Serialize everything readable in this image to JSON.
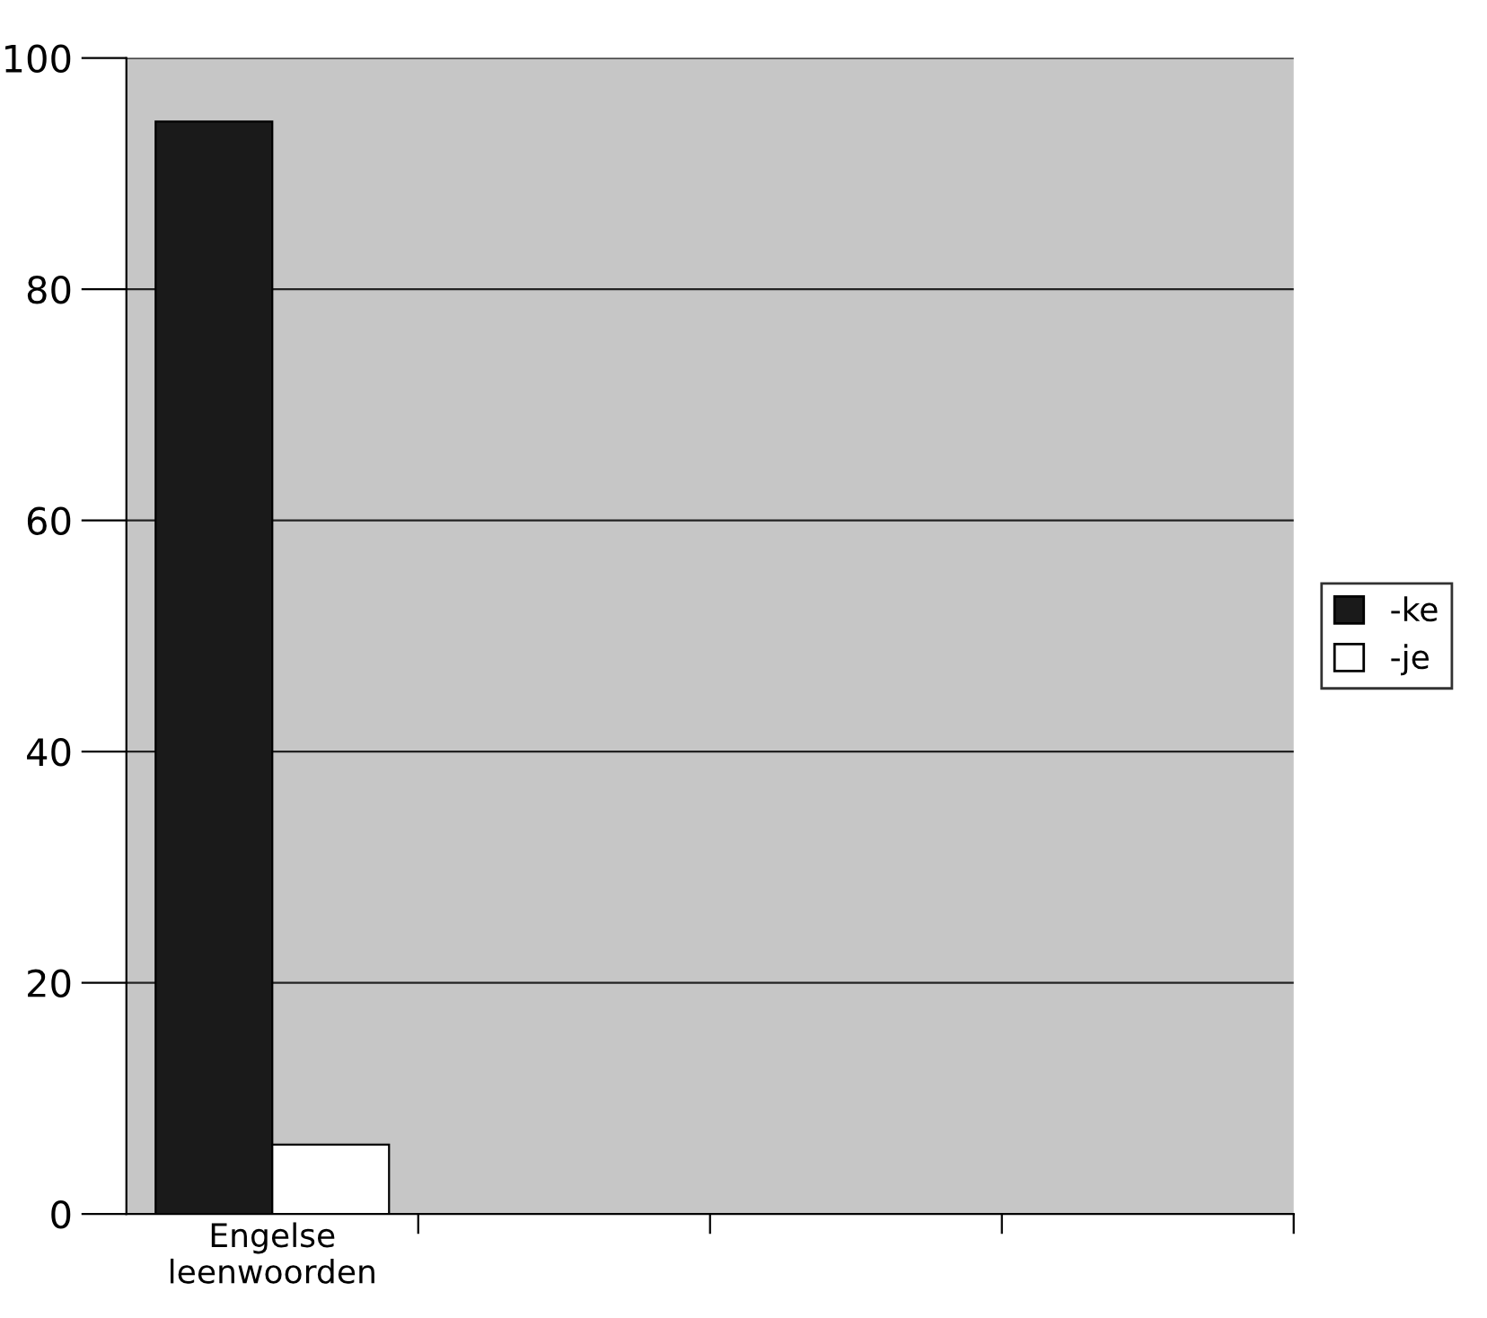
{
  "chart_data": {
    "type": "bar",
    "categories": [
      "Engelse\nleenwoorden",
      null,
      null,
      null
    ],
    "series": [
      {
        "name": "-ke",
        "color": "#1a1a1a",
        "values": [
          94.5,
          null,
          null,
          null
        ]
      },
      {
        "name": "-je",
        "color": "#ffffff",
        "values": [
          6,
          null,
          null,
          null
        ]
      }
    ],
    "ylim": [
      0,
      100
    ],
    "yticks": [
      0,
      20,
      40,
      60,
      80,
      100
    ],
    "grid": "y",
    "legend": "right"
  }
}
